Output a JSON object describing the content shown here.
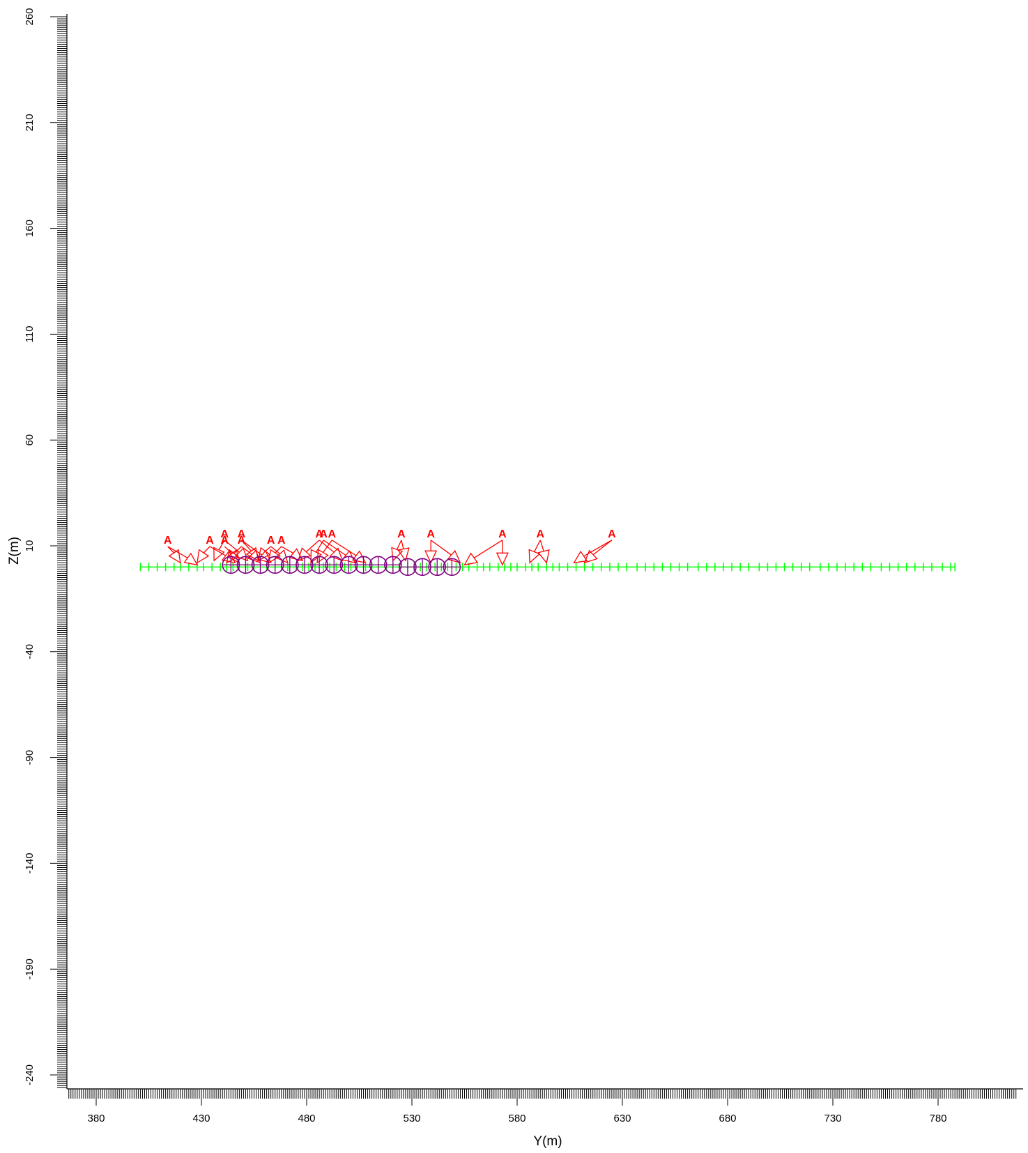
{
  "chart_data": {
    "type": "scatter",
    "xlabel": "Y(m)",
    "ylabel": "Z(m)",
    "xlim": [
      365,
      817
    ],
    "ylim": [
      -252,
      260
    ],
    "x_ticks": [
      380,
      430,
      480,
      530,
      580,
      630,
      680,
      730,
      780
    ],
    "y_ticks": [
      260,
      210,
      160,
      110,
      60,
      10,
      -40,
      -90,
      -140,
      -190,
      -240
    ],
    "receiver_line": {
      "y_start": 401,
      "y_end": 788,
      "z": 0,
      "color": "#00ff00",
      "marker": "plus",
      "dense_y": [
        401,
        405,
        409,
        413,
        417,
        420,
        424,
        428,
        431,
        435,
        439,
        442,
        445,
        448,
        452,
        455,
        458,
        461,
        465,
        468,
        471,
        475,
        478,
        481,
        484,
        488,
        491,
        494,
        498,
        501,
        504,
        508,
        511,
        514,
        518,
        521,
        524,
        528,
        531,
        534,
        537,
        541,
        544,
        547,
        551,
        554,
        557,
        561,
        564,
        567,
        571,
        574,
        577,
        580,
        584,
        587,
        590,
        594,
        597,
        600,
        604,
        608,
        612,
        616,
        620,
        624,
        628,
        632,
        637,
        641,
        645,
        649,
        653,
        657,
        661,
        666,
        670,
        674,
        678,
        682,
        686,
        690,
        695,
        699,
        703,
        707,
        711,
        715,
        719,
        724,
        728,
        732,
        736,
        740,
        744,
        748,
        753,
        757,
        761,
        765,
        769,
        773,
        777,
        782,
        786,
        788
      ]
    },
    "sources": {
      "color": "#800080",
      "marker": "circle-plus",
      "points": [
        {
          "y": 444,
          "z": 1
        },
        {
          "y": 451,
          "z": 1
        },
        {
          "y": 458,
          "z": 1
        },
        {
          "y": 465,
          "z": 1
        },
        {
          "y": 472,
          "z": 1
        },
        {
          "y": 479,
          "z": 1
        },
        {
          "y": 486,
          "z": 1
        },
        {
          "y": 493,
          "z": 1
        },
        {
          "y": 500,
          "z": 1
        },
        {
          "y": 507,
          "z": 1
        },
        {
          "y": 514,
          "z": 1
        },
        {
          "y": 521,
          "z": 1
        },
        {
          "y": 528,
          "z": 0
        },
        {
          "y": 535,
          "z": 0
        },
        {
          "y": 542,
          "z": 0
        },
        {
          "y": 549,
          "z": 0
        }
      ]
    },
    "annotations": {
      "label": "A",
      "color": "#ff0000",
      "arrows": [
        {
          "from": [
            414,
            11
          ],
          "to": [
            420,
            2
          ]
        },
        {
          "from": [
            414,
            11
          ],
          "to": [
            428,
            1
          ]
        },
        {
          "from": [
            434,
            11
          ],
          "to": [
            428,
            2
          ]
        },
        {
          "from": [
            434,
            11
          ],
          "to": [
            446,
            2
          ]
        },
        {
          "from": [
            441,
            14
          ],
          "to": [
            436,
            3
          ]
        },
        {
          "from": [
            441,
            14
          ],
          "to": [
            452,
            3
          ]
        },
        {
          "from": [
            441,
            11
          ],
          "to": [
            448,
            2
          ]
        },
        {
          "from": [
            449,
            14
          ],
          "to": [
            457,
            3
          ]
        },
        {
          "from": [
            449,
            14
          ],
          "to": [
            463,
            2
          ]
        },
        {
          "from": [
            449,
            11
          ],
          "to": [
            442,
            2
          ]
        },
        {
          "from": [
            449,
            11
          ],
          "to": [
            458,
            2
          ]
        },
        {
          "from": [
            463,
            11
          ],
          "to": [
            457,
            3
          ]
        },
        {
          "from": [
            463,
            11
          ],
          "to": [
            471,
            2
          ]
        },
        {
          "from": [
            468,
            11
          ],
          "to": [
            478,
            3
          ]
        },
        {
          "from": [
            468,
            11
          ],
          "to": [
            462,
            2
          ]
        },
        {
          "from": [
            486,
            14
          ],
          "to": [
            476,
            3
          ]
        },
        {
          "from": [
            486,
            14
          ],
          "to": [
            497,
            3
          ]
        },
        {
          "from": [
            488,
            14
          ],
          "to": [
            482,
            2
          ]
        },
        {
          "from": [
            488,
            14
          ],
          "to": [
            503,
            2
          ]
        },
        {
          "from": [
            492,
            14
          ],
          "to": [
            485,
            2
          ]
        },
        {
          "from": [
            492,
            14
          ],
          "to": [
            508,
            2
          ]
        },
        {
          "from": [
            525,
            14
          ],
          "to": [
            521,
            3
          ]
        },
        {
          "from": [
            525,
            14
          ],
          "to": [
            527,
            3
          ]
        },
        {
          "from": [
            539,
            14
          ],
          "to": [
            539,
            2
          ]
        },
        {
          "from": [
            539,
            14
          ],
          "to": [
            553,
            2
          ]
        },
        {
          "from": [
            573,
            14
          ],
          "to": [
            573,
            1
          ]
        },
        {
          "from": [
            573,
            14
          ],
          "to": [
            555,
            1
          ]
        },
        {
          "from": [
            591,
            14
          ],
          "to": [
            586,
            2
          ]
        },
        {
          "from": [
            591,
            14
          ],
          "to": [
            594,
            2
          ]
        },
        {
          "from": [
            625,
            14
          ],
          "to": [
            607,
            2
          ]
        },
        {
          "from": [
            625,
            14
          ],
          "to": [
            612,
            2
          ]
        }
      ]
    }
  }
}
